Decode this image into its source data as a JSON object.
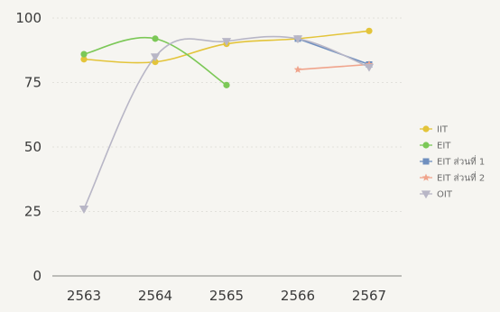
{
  "chart_data": {
    "type": "line",
    "title": "",
    "xlabel": "",
    "ylabel": "",
    "categories": [
      "2563",
      "2564",
      "2565",
      "2566",
      "2567"
    ],
    "y_ticks": [
      "0",
      "25",
      "50",
      "75",
      "100"
    ],
    "ylim": [
      0,
      100
    ],
    "grid": true,
    "legend_position": "right",
    "series": [
      {
        "name": "IIT",
        "color": "#e3c43a",
        "marker": "circle",
        "values": [
          84,
          83,
          90,
          92,
          95
        ]
      },
      {
        "name": "EIT",
        "color": "#7cc857",
        "marker": "circle",
        "values": [
          86,
          92,
          74,
          null,
          null
        ]
      },
      {
        "name": "EIT ส่วนที่ 1",
        "color": "#6f8fbf",
        "marker": "square",
        "values": [
          null,
          null,
          null,
          92,
          82
        ]
      },
      {
        "name": "EIT ส่วนที่ 2",
        "color": "#f0a48c",
        "marker": "star",
        "values": [
          null,
          null,
          null,
          80,
          82
        ]
      },
      {
        "name": "OIT",
        "color": "#b8b6c6",
        "marker": "triangle-down",
        "values": [
          26,
          85,
          91,
          92,
          81
        ]
      }
    ]
  }
}
